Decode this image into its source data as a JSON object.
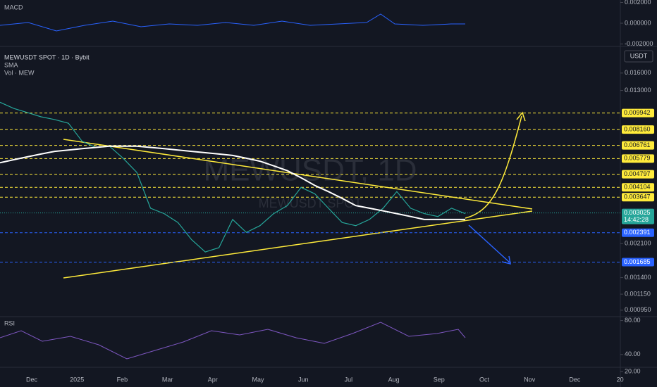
{
  "header": {
    "symbol": "MEWUSDT SPOT · 1D · Bybit",
    "volume": "Vol · MEW",
    "currency": "USDT",
    "watermark": "MEWUSDT, 1D",
    "watermark_sub": "MEWUSDT SPOT"
  },
  "macd": {
    "label": "MACD",
    "ylim": [
      -0.0021,
      0.0021
    ],
    "yticks": [
      {
        "value": 0.002,
        "label": "0.002000"
      },
      {
        "value": 0,
        "label": "0.000000"
      },
      {
        "value": -0.002,
        "label": "-0.002000"
      }
    ]
  },
  "rsi": {
    "label": "RSI",
    "ylim": [
      15,
      83
    ],
    "yticks": [
      {
        "value": 80,
        "label": "80.00"
      },
      {
        "value": 40,
        "label": "40.00"
      },
      {
        "value": 20,
        "label": "20.00"
      }
    ]
  },
  "chart_data": {
    "type": "line",
    "log_scale": true,
    "ylim": [
      0.00088,
      0.0216
    ],
    "yticks": [
      {
        "value": 0.016,
        "label": "0.016000"
      },
      {
        "value": 0.013,
        "label": "0.013000"
      },
      {
        "value": 0.0021,
        "label": "0.002100"
      },
      {
        "value": 0.0014,
        "label": "0.001400"
      },
      {
        "value": 0.00115,
        "label": "0.001150"
      },
      {
        "value": 0.00095,
        "label": "0.000950"
      }
    ],
    "levels": [
      {
        "value": 0.009942,
        "label": "0.009942",
        "color": "#ffeb3b"
      },
      {
        "value": 0.00816,
        "label": "0.008160",
        "color": "#ffeb3b"
      },
      {
        "value": 0.006761,
        "label": "0.006761",
        "color": "#ffeb3b"
      },
      {
        "value": 0.005779,
        "label": "0.005779",
        "color": "#ffeb3b"
      },
      {
        "value": 0.004797,
        "label": "0.004797",
        "color": "#ffeb3b"
      },
      {
        "value": 0.004104,
        "label": "0.004104",
        "color": "#ffeb3b"
      },
      {
        "value": 0.003647,
        "label": "0.003647",
        "color": "#ffeb3b"
      },
      {
        "value": 0.002391,
        "label": "0.002391",
        "color": "#2962ff"
      },
      {
        "value": 0.001685,
        "label": "0.001685",
        "color": "#2962ff"
      }
    ],
    "last": {
      "value": 0.003025,
      "label": "0.003025",
      "countdown": "14:42:28",
      "color": "#26a69a"
    },
    "time_labels": [
      "Dec",
      "2025",
      "Feb",
      "Mar",
      "Apr",
      "May",
      "Jun",
      "Jul",
      "Aug",
      "Sep",
      "Oct",
      "Nov",
      "Dec",
      "20"
    ],
    "series": [
      {
        "color": "#26a69a",
        "values": [
          0.0113,
          0.0105,
          0.01,
          0.0095,
          0.0092,
          0.0088,
          0.0071,
          0.0066,
          0.0067,
          0.0058,
          0.0049,
          0.0032,
          0.003,
          0.0027,
          0.0022,
          0.0019,
          0.002,
          0.0028,
          0.0024,
          0.0026,
          0.003,
          0.0033,
          0.0041,
          0.0038,
          0.0032,
          0.0027,
          0.0026,
          0.0028,
          0.0032,
          0.0039,
          0.0032,
          0.003,
          0.0029,
          0.0032,
          0.003
        ]
      },
      {
        "name": "SMA",
        "color": "#ffffff",
        "values": [
          0.0055,
          0.0057,
          0.0059,
          0.0061,
          0.0063,
          0.0064,
          0.0065,
          0.0066,
          0.0067,
          0.0067,
          0.0067,
          0.0066,
          0.0065,
          0.0064,
          0.0063,
          0.0062,
          0.0061,
          0.006,
          0.0058,
          0.0056,
          0.0053,
          0.005,
          0.0046,
          0.0042,
          0.0039,
          0.0036,
          0.0033,
          0.0032,
          0.0031,
          0.003,
          0.0029,
          0.0028,
          0.0028,
          0.0028,
          0.0028
        ]
      }
    ]
  }
}
